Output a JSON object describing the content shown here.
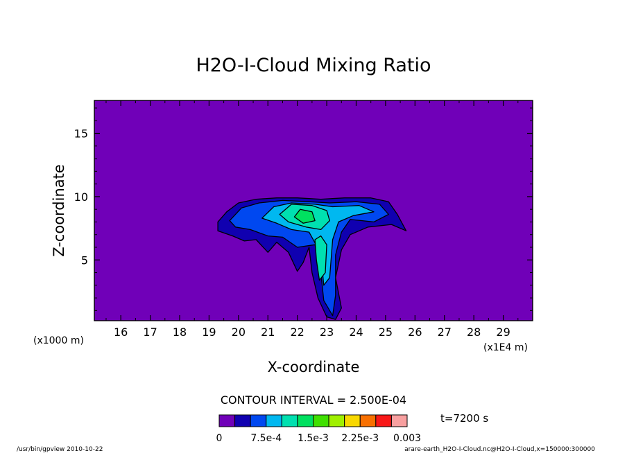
{
  "chart_data": {
    "type": "heatmap",
    "title": "H2O-I-Cloud Mixing Ratio",
    "xlabel": "X-coordinate",
    "ylabel": "Z-coordinate",
    "x_unit_left": "(x1000 m)",
    "x_unit_right": "(x1E4 m)",
    "x_ticks": [
      "16",
      "17",
      "18",
      "19",
      "20",
      "21",
      "22",
      "23",
      "24",
      "25",
      "26",
      "27",
      "28",
      "29"
    ],
    "y_ticks": [
      "5",
      "10",
      "15"
    ],
    "xlim": [
      15.1,
      30.0
    ],
    "ylim": [
      0.2,
      17.6
    ],
    "contour_interval_text": "CONTOUR INTERVAL = 2.500E-04",
    "time_label": "t=7200 s",
    "colorbar": {
      "colors": [
        "#7000b8",
        "#1000b0",
        "#0048f0",
        "#00b8f0",
        "#00e0b0",
        "#00e060",
        "#40e000",
        "#a0f000",
        "#f8d800",
        "#f87000",
        "#f81818",
        "#f8a0a0"
      ],
      "labels": [
        "0",
        "7.5e-4",
        "1.5e-3",
        "2.25e-3",
        "0.003"
      ]
    },
    "footer_left": "/usr/bin/gpview  2010-10-22",
    "footer_right": "arare-earth_H2O-I-Cloud.nc@H2O-I-Cloud,x=150000:300000",
    "background_level_color": "#7000b8",
    "cloud": {
      "anvil_outer": [
        [
          19.3,
          8.0
        ],
        [
          19.6,
          8.8
        ],
        [
          20.0,
          9.5
        ],
        [
          20.6,
          9.8
        ],
        [
          21.3,
          9.9
        ],
        [
          22.0,
          9.9
        ],
        [
          22.8,
          9.8
        ],
        [
          23.6,
          9.9
        ],
        [
          24.5,
          9.9
        ],
        [
          25.1,
          9.6
        ],
        [
          25.4,
          8.6
        ],
        [
          25.7,
          7.3
        ],
        [
          25.2,
          7.8
        ],
        [
          24.4,
          7.6
        ],
        [
          23.8,
          7.0
        ],
        [
          23.5,
          5.8
        ],
        [
          23.3,
          3.6
        ],
        [
          23.5,
          1.2
        ],
        [
          23.3,
          0.3
        ],
        [
          23.0,
          0.5
        ],
        [
          22.7,
          2.0
        ],
        [
          22.5,
          4.0
        ],
        [
          22.4,
          6.0
        ],
        [
          22.2,
          4.8
        ],
        [
          22.0,
          4.1
        ],
        [
          21.7,
          5.6
        ],
        [
          21.3,
          6.4
        ],
        [
          21.0,
          5.6
        ],
        [
          20.6,
          6.6
        ],
        [
          20.2,
          6.5
        ],
        [
          19.8,
          6.9
        ],
        [
          19.3,
          7.3
        ]
      ],
      "anvil_level2": [
        [
          19.7,
          8.1
        ],
        [
          20.1,
          9.1
        ],
        [
          20.7,
          9.5
        ],
        [
          21.5,
          9.7
        ],
        [
          22.4,
          9.6
        ],
        [
          23.1,
          9.5
        ],
        [
          24.0,
          9.6
        ],
        [
          24.8,
          9.4
        ],
        [
          25.1,
          8.6
        ],
        [
          24.6,
          8.0
        ],
        [
          23.8,
          8.2
        ],
        [
          23.5,
          7.2
        ],
        [
          23.3,
          5.4
        ],
        [
          23.3,
          2.2
        ],
        [
          23.2,
          0.6
        ],
        [
          22.9,
          1.8
        ],
        [
          22.8,
          4.0
        ],
        [
          22.6,
          6.2
        ],
        [
          22.0,
          6.0
        ],
        [
          21.5,
          6.8
        ],
        [
          21.0,
          6.9
        ],
        [
          20.4,
          7.4
        ],
        [
          19.9,
          7.6
        ]
      ],
      "anvil_level3": [
        [
          20.8,
          8.3
        ],
        [
          21.2,
          9.2
        ],
        [
          21.8,
          9.5
        ],
        [
          22.6,
          9.4
        ],
        [
          23.2,
          9.2
        ],
        [
          24.1,
          9.3
        ],
        [
          24.6,
          8.8
        ],
        [
          23.9,
          8.5
        ],
        [
          23.4,
          8.0
        ],
        [
          23.2,
          6.6
        ],
        [
          23.1,
          3.6
        ],
        [
          22.9,
          3.0
        ],
        [
          22.8,
          5.5
        ],
        [
          22.4,
          7.2
        ],
        [
          21.8,
          7.4
        ],
        [
          21.3,
          7.9
        ]
      ],
      "core_level4": [
        [
          21.4,
          8.6
        ],
        [
          21.8,
          9.4
        ],
        [
          22.5,
          9.3
        ],
        [
          23.0,
          8.9
        ],
        [
          23.1,
          8.1
        ],
        [
          22.8,
          7.4
        ],
        [
          22.3,
          7.6
        ],
        [
          21.7,
          8.0
        ]
      ],
      "stem_level4": [
        [
          22.6,
          6.6
        ],
        [
          22.8,
          6.9
        ],
        [
          23.0,
          6.2
        ],
        [
          22.95,
          4.0
        ],
        [
          22.75,
          3.4
        ],
        [
          22.65,
          5.0
        ]
      ],
      "core_level5": [
        [
          21.9,
          8.4
        ],
        [
          22.1,
          9.0
        ],
        [
          22.5,
          8.8
        ],
        [
          22.6,
          8.1
        ],
        [
          22.2,
          7.9
        ]
      ]
    }
  }
}
